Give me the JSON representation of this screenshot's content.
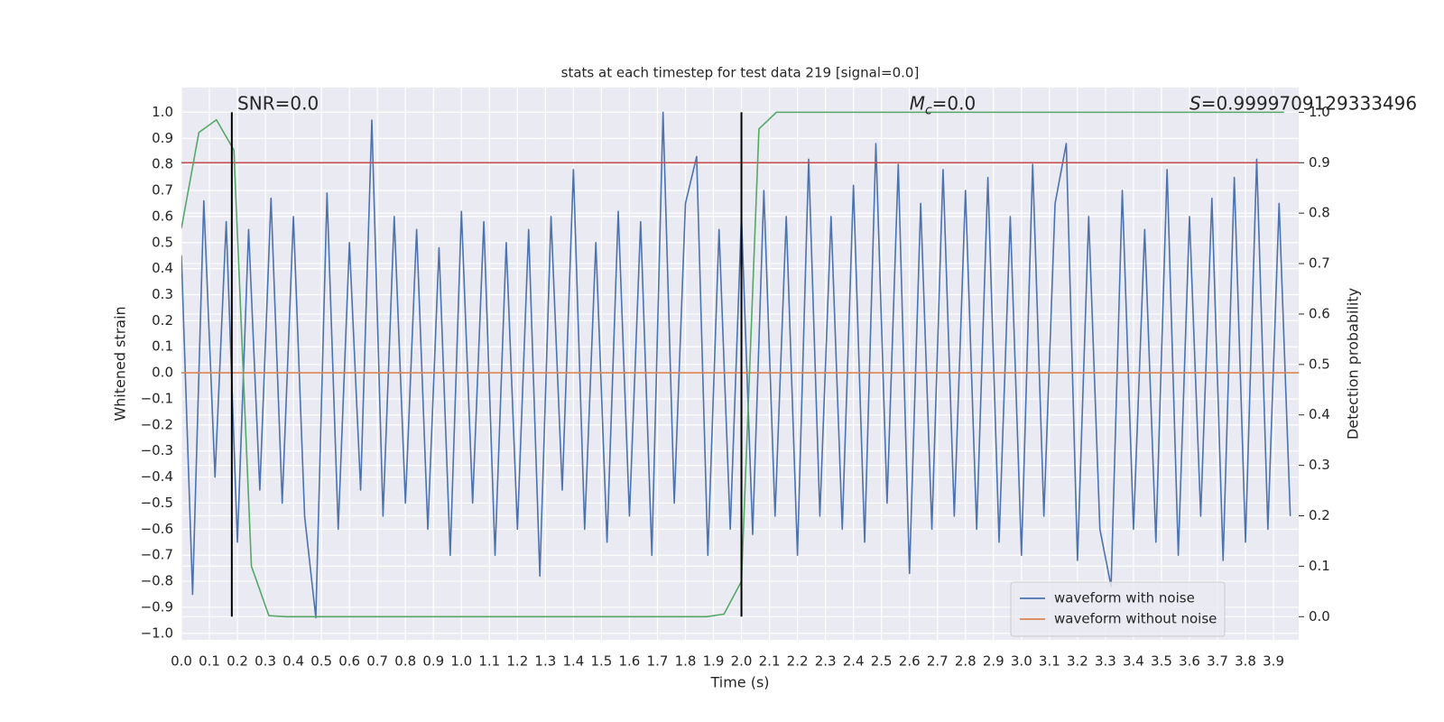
{
  "chart_data": {
    "type": "line",
    "title": "stats at each timestep for test data 219 [signal=0.0]",
    "x_label": "Time (s)",
    "y_label": "Whitened strain",
    "y2_label": "Detection probability",
    "xlim": [
      0,
      3.99
    ],
    "ylim": [
      -1.025,
      1.095
    ],
    "y2lim": [
      -0.046,
      1.049
    ],
    "grid": true,
    "legend": "lower right",
    "xticks": [
      {
        "value": 0,
        "label": "0.0"
      },
      {
        "value": 0.1,
        "label": "0.1"
      },
      {
        "value": 0.2,
        "label": "0.2"
      },
      {
        "value": 0.3,
        "label": "0.3"
      },
      {
        "value": 0.4,
        "label": "0.4"
      },
      {
        "value": 0.5,
        "label": "0.5"
      },
      {
        "value": 0.6,
        "label": "0.6"
      },
      {
        "value": 0.7,
        "label": "0.7"
      },
      {
        "value": 0.8,
        "label": "0.8"
      },
      {
        "value": 0.9,
        "label": "0.9"
      },
      {
        "value": 1,
        "label": "1.0"
      },
      {
        "value": 1.1,
        "label": "1.1"
      },
      {
        "value": 1.2,
        "label": "1.2"
      },
      {
        "value": 1.3,
        "label": "1.3"
      },
      {
        "value": 1.4,
        "label": "1.4"
      },
      {
        "value": 1.5,
        "label": "1.5"
      },
      {
        "value": 1.6,
        "label": "1.6"
      },
      {
        "value": 1.7,
        "label": "1.7"
      },
      {
        "value": 1.8,
        "label": "1.8"
      },
      {
        "value": 1.9,
        "label": "1.9"
      },
      {
        "value": 2,
        "label": "2.0"
      },
      {
        "value": 2.1,
        "label": "2.1"
      },
      {
        "value": 2.2,
        "label": "2.2"
      },
      {
        "value": 2.3,
        "label": "2.3"
      },
      {
        "value": 2.4,
        "label": "2.4"
      },
      {
        "value": 2.5,
        "label": "2.5"
      },
      {
        "value": 2.6,
        "label": "2.6"
      },
      {
        "value": 2.7,
        "label": "2.7"
      },
      {
        "value": 2.8,
        "label": "2.8"
      },
      {
        "value": 2.9,
        "label": "2.9"
      },
      {
        "value": 3,
        "label": "3.0"
      },
      {
        "value": 3.1,
        "label": "3.1"
      },
      {
        "value": 3.2,
        "label": "3.2"
      },
      {
        "value": 3.3,
        "label": "3.3"
      },
      {
        "value": 3.4,
        "label": "3.4"
      },
      {
        "value": 3.5,
        "label": "3.5"
      },
      {
        "value": 3.6,
        "label": "3.6"
      },
      {
        "value": 3.7,
        "label": "3.7"
      },
      {
        "value": 3.8,
        "label": "3.8"
      },
      {
        "value": 3.9,
        "label": "3.9"
      }
    ],
    "yticks": [
      {
        "value": -1,
        "label": "−1.0"
      },
      {
        "value": -0.9,
        "label": "−0.9"
      },
      {
        "value": -0.8,
        "label": "−0.8"
      },
      {
        "value": -0.7,
        "label": "−0.7"
      },
      {
        "value": -0.6,
        "label": "−0.6"
      },
      {
        "value": -0.5,
        "label": "−0.5"
      },
      {
        "value": -0.4,
        "label": "−0.4"
      },
      {
        "value": -0.3,
        "label": "−0.3"
      },
      {
        "value": -0.2,
        "label": "−0.2"
      },
      {
        "value": -0.1,
        "label": "−0.1"
      },
      {
        "value": 0,
        "label": "0.0"
      },
      {
        "value": 0.1,
        "label": "0.1"
      },
      {
        "value": 0.2,
        "label": "0.2"
      },
      {
        "value": 0.3,
        "label": "0.3"
      },
      {
        "value": 0.4,
        "label": "0.4"
      },
      {
        "value": 0.5,
        "label": "0.5"
      },
      {
        "value": 0.6,
        "label": "0.6"
      },
      {
        "value": 0.7,
        "label": "0.7"
      },
      {
        "value": 0.8,
        "label": "0.8"
      },
      {
        "value": 0.9,
        "label": "0.9"
      },
      {
        "value": 1,
        "label": "1.0"
      }
    ],
    "y2ticks": [
      {
        "value": 0,
        "label": "0.0"
      },
      {
        "value": 0.1,
        "label": "0.1"
      },
      {
        "value": 0.2,
        "label": "0.2"
      },
      {
        "value": 0.3,
        "label": "0.3"
      },
      {
        "value": 0.4,
        "label": "0.4"
      },
      {
        "value": 0.5,
        "label": "0.5"
      },
      {
        "value": 0.6,
        "label": "0.6"
      },
      {
        "value": 0.7,
        "label": "0.7"
      },
      {
        "value": 0.8,
        "label": "0.8"
      },
      {
        "value": 0.9,
        "label": "0.9"
      },
      {
        "value": 1,
        "label": "1.0"
      }
    ],
    "series": [
      {
        "name": "waveform with noise",
        "color": "#4c72b0",
        "x": [
          0,
          0.04,
          0.08,
          0.12,
          0.16,
          0.2,
          0.24,
          0.28,
          0.32,
          0.36,
          0.4,
          0.44,
          0.48,
          0.52,
          0.56,
          0.6,
          0.64,
          0.68,
          0.72,
          0.76,
          0.8,
          0.84,
          0.88,
          0.92,
          0.96,
          1,
          1.04,
          1.08,
          1.12,
          1.16,
          1.2,
          1.24,
          1.28,
          1.32,
          1.36,
          1.4,
          1.44,
          1.48,
          1.52,
          1.56,
          1.6,
          1.64,
          1.68,
          1.72,
          1.76,
          1.8,
          1.84,
          1.88,
          1.92,
          1.96,
          2,
          2.04,
          2.08,
          2.12,
          2.16,
          2.2,
          2.24,
          2.28,
          2.32,
          2.36,
          2.4,
          2.44,
          2.48,
          2.52,
          2.56,
          2.6,
          2.64,
          2.68,
          2.72,
          2.76,
          2.8,
          2.84,
          2.88,
          2.92,
          2.96,
          3,
          3.04,
          3.08,
          3.12,
          3.16,
          3.2,
          3.24,
          3.28,
          3.32,
          3.36,
          3.4,
          3.44,
          3.48,
          3.52,
          3.56,
          3.6,
          3.64,
          3.68,
          3.72,
          3.76,
          3.8,
          3.84,
          3.88,
          3.92,
          3.96
        ],
        "values": [
          0.45,
          -0.85,
          0.66,
          -0.4,
          0.58,
          -0.65,
          0.55,
          -0.45,
          0.67,
          -0.5,
          0.6,
          -0.55,
          -0.94,
          0.69,
          -0.6,
          0.5,
          -0.45,
          0.97,
          -0.55,
          0.6,
          -0.5,
          0.55,
          -0.6,
          0.48,
          -0.7,
          0.62,
          -0.5,
          0.58,
          -0.7,
          0.5,
          -0.6,
          0.55,
          -0.78,
          0.6,
          -0.45,
          0.78,
          -0.6,
          0.5,
          -0.65,
          0.62,
          -0.55,
          0.58,
          -0.7,
          1.0,
          -0.5,
          0.65,
          0.83,
          -0.7,
          0.55,
          -0.6,
          0.6,
          -0.62,
          0.7,
          -0.55,
          0.6,
          -0.7,
          0.82,
          -0.55,
          0.6,
          -0.6,
          0.72,
          -0.65,
          0.88,
          -0.5,
          0.8,
          -0.77,
          0.65,
          -0.6,
          0.78,
          -0.55,
          0.7,
          -0.6,
          0.75,
          -0.65,
          0.6,
          -0.7,
          0.8,
          -0.55,
          0.65,
          0.88,
          -0.72,
          0.6,
          -0.6,
          -0.82,
          0.7,
          -0.6,
          0.55,
          -0.65,
          0.78,
          -0.7,
          0.6,
          -0.55,
          0.67,
          -0.72,
          0.75,
          -0.65,
          0.82,
          -0.6,
          0.65,
          -0.55
        ]
      },
      {
        "name": "waveform without noise",
        "color": "#dd8452",
        "x": [
          0,
          3.99
        ],
        "values": [
          0,
          0
        ]
      },
      {
        "color": "#55a868",
        "axis": "y2",
        "x": [
          0,
          0.0625,
          0.125,
          0.1875,
          0.25,
          0.3125,
          0.375,
          1.875,
          1.9375,
          2.0,
          2.0625,
          2.125,
          3.9375
        ],
        "values": [
          0.77,
          0.96,
          0.985,
          0.925,
          0.1,
          0.002,
          0.0,
          0.0,
          0.005,
          0.07,
          0.967,
          1.0,
          1.0
        ]
      }
    ],
    "hline": {
      "y": 0.9,
      "axis": "y2",
      "color": "#c44e52"
    },
    "vlines": {
      "x": [
        0.18,
        2.0
      ],
      "span": [
        0,
        1
      ],
      "axis": "y2",
      "color": "#000000"
    },
    "annotations": [
      {
        "x": 0.2,
        "y": 1.0,
        "text": "SNR=0.0"
      },
      {
        "x": 2.6,
        "y": 1.0,
        "symbol": "M",
        "subscript": "c",
        "text": "=0.0"
      },
      {
        "x": 3.6,
        "y": 1.0,
        "symbol": "S",
        "text": "=0.9999709129333496"
      }
    ]
  }
}
